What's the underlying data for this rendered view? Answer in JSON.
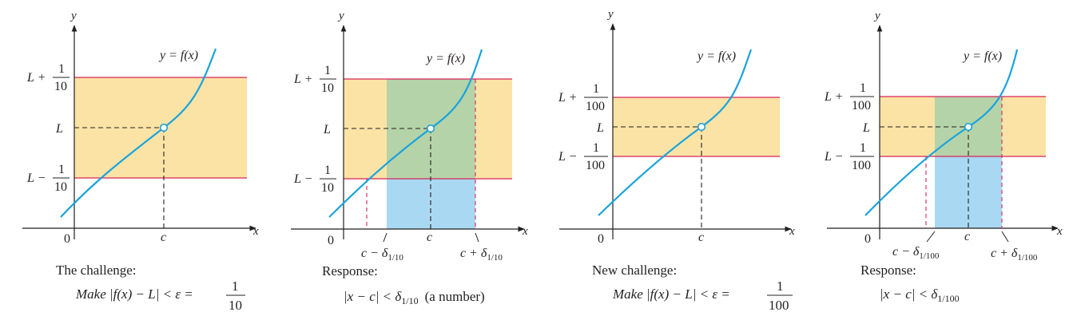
{
  "colors": {
    "band_yellow": "#fbe3a5",
    "band_green": "#b5d3a8",
    "band_blue": "#a9d8f2",
    "curve": "#1aa3dd",
    "red_line": "#d6245a",
    "axis": "#231f20"
  },
  "common": {
    "y_axis": "y",
    "x_axis": "x",
    "origin": "0",
    "c": "c",
    "L": "L",
    "curve_label": "y = f(x)"
  },
  "panel1": {
    "upper_prefix": "L +",
    "lower_prefix": "L −",
    "num": "1",
    "den": "10",
    "caption_line1": "The challenge:",
    "caption_make": "Make |f(x) − L| < ε =",
    "caption_num": "1",
    "caption_den": "10"
  },
  "panel2": {
    "upper_prefix": "L +",
    "lower_prefix": "L −",
    "num": "1",
    "den": "10",
    "c_minus": "c − δ",
    "c_plus": "c + δ",
    "delta_sub": "1/10",
    "caption_line1": "Response:",
    "caption_resp": "|x − c| < δ",
    "caption_sub": "1/10",
    "caption_tail": "(a number)"
  },
  "panel3": {
    "upper_prefix": "L +",
    "lower_prefix": "L −",
    "num": "1",
    "den": "100",
    "caption_line1": "New challenge:",
    "caption_make": "Make |f(x) − L| < ε =",
    "caption_num": "1",
    "caption_den": "100"
  },
  "panel4": {
    "upper_prefix": "L +",
    "lower_prefix": "L −",
    "num": "1",
    "den": "100",
    "c_minus": "c − δ",
    "c_plus": "c + δ",
    "delta_sub": "1/100",
    "caption_line1": "Response:",
    "caption_resp": "|x − c| < δ",
    "caption_sub": "1/100"
  }
}
